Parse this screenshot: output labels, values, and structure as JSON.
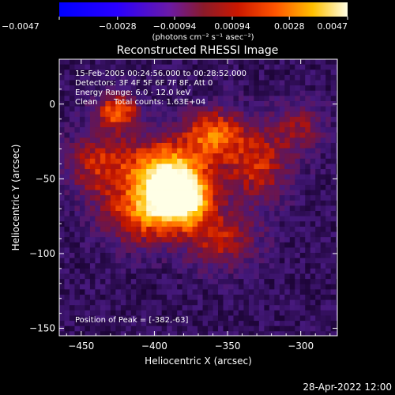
{
  "chart_data": {
    "type": "heatmap",
    "title": "Reconstructed RHESSI Image",
    "xlabel": "Heliocentric X (arcsec)",
    "ylabel": "Heliocentric Y (arcsec)",
    "xlim": [
      -465,
      -275
    ],
    "ylim": [
      -155,
      30
    ],
    "xticks": [
      -450,
      -400,
      -350,
      -300
    ],
    "yticks": [
      0,
      -50,
      -100,
      -150
    ],
    "xtick_labels": [
      "−450",
      "−400",
      "−350",
      "−300"
    ],
    "ytick_labels": [
      "0",
      "−50",
      "−100",
      "−150"
    ],
    "colorbar": {
      "range": [
        -0.0047,
        0.0047
      ],
      "ticks": [
        -0.0047,
        -0.0028,
        -0.00094,
        0.00094,
        0.0028,
        0.0047
      ],
      "tick_labels": [
        "−0.0047",
        "−0.0028",
        "−0.00094",
        "0.00094",
        "0.0028",
        "0.0047"
      ],
      "unit_label": "(photons cm⁻² s⁻¹ asec⁻²)"
    },
    "peak": {
      "x": -382,
      "y": -63,
      "value": 0.0047
    },
    "sources": [
      {
        "x": -382,
        "y": -63,
        "amplitude": 1.0,
        "sigma_x": 14,
        "sigma_y": 13
      },
      {
        "x": -395,
        "y": -45,
        "amplitude": 0.75,
        "sigma_x": 20,
        "sigma_y": 16
      },
      {
        "x": -425,
        "y": -5,
        "amplitude": 0.6,
        "sigma_x": 10,
        "sigma_y": 8
      },
      {
        "x": -360,
        "y": -20,
        "amplitude": 0.55,
        "sigma_x": 14,
        "sigma_y": 12
      },
      {
        "x": -410,
        "y": -75,
        "amplitude": 0.5,
        "sigma_x": 18,
        "sigma_y": 14
      },
      {
        "x": -330,
        "y": -40,
        "amplitude": 0.45,
        "sigma_x": 16,
        "sigma_y": 18
      },
      {
        "x": -440,
        "y": -40,
        "amplitude": 0.4,
        "sigma_x": 14,
        "sigma_y": 16
      },
      {
        "x": -355,
        "y": -90,
        "amplitude": 0.4,
        "sigma_x": 18,
        "sigma_y": 14
      },
      {
        "x": -300,
        "y": -15,
        "amplitude": 0.3,
        "sigma_x": 12,
        "sigma_y": 12
      }
    ]
  },
  "annotations": {
    "time_range": "15-Feb-2005 00:24:56.000 to 00:28:52.000",
    "detectors": "Detectors: 3F 4F 5F 6F 7F 8F, Att 0",
    "energy_range": "Energy Range: 6.0 - 12.0 keV",
    "method_label": "Clean",
    "total_counts": "Total counts: 1.63E+04",
    "peak_position": "Position of Peak = [-382,-63]"
  },
  "footer": {
    "date": "28-Apr-2022 12:00"
  }
}
